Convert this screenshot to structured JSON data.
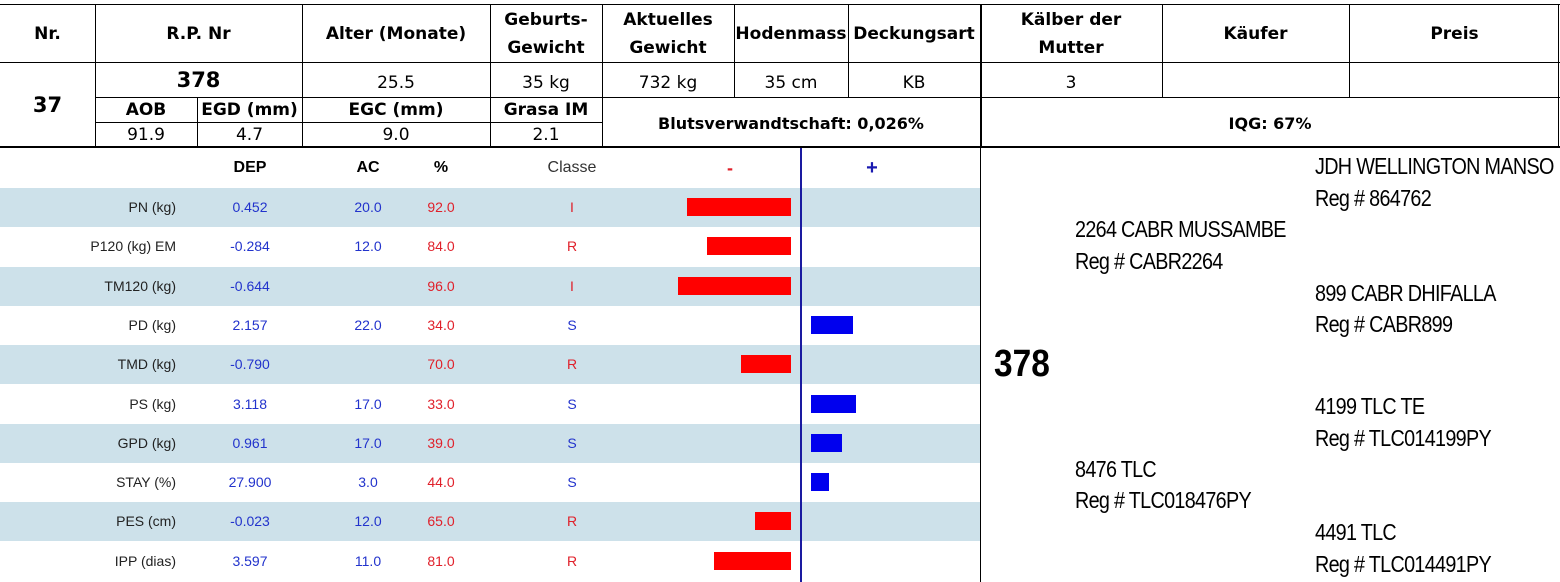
{
  "header": {
    "nr_label": "Nr.",
    "rp_label": "R.P. Nr",
    "alter_label": "Alter (Monate)",
    "geburts_label_1": "Geburts-",
    "geburts_label_2": "Gewicht",
    "aktuelles_label_1": "Aktuelles",
    "aktuelles_label_2": "Gewicht",
    "hodenmass_label": "Hodenmass",
    "deckungsart_label": "Deckungsart",
    "kaelber_label_1": "Kälber der",
    "kaelber_label_2": "Mutter",
    "kaeufer_label": "Käufer",
    "preis_label": "Preis"
  },
  "animal": {
    "nr": "37",
    "rp": "378",
    "alter": "25.5",
    "geburtsgewicht": "35 kg",
    "aktuelles_gewicht": "732 kg",
    "hodenmass": "35 cm",
    "deckungsart": "KB",
    "kaelber": "3",
    "kaeufer": "",
    "preis": ""
  },
  "carcass": {
    "aob_label": "AOB",
    "aob": "91.9",
    "egd_label": "EGD (mm)",
    "egd": "4.7",
    "egc_label": "EGC (mm)",
    "egc": "9.0",
    "grasa_label": "Grasa IM",
    "grasa": "2.1",
    "blutsverwandtschaft": "Blutsverwandtschaft: 0,026%",
    "iqg": "IQG: 67%"
  },
  "epd_table": {
    "columns": {
      "dep": "DEP",
      "ac": "AC",
      "pct": "%",
      "classe": "Classe",
      "minus": "-",
      "plus": "+"
    },
    "rows": [
      {
        "label": "PN (kg)",
        "dep": "0.452",
        "ac": "20.0",
        "pct": "92.0",
        "classe": "I",
        "side": "neg",
        "bar": 0.92
      },
      {
        "label": "P120 (kg) EM",
        "dep": "-0.284",
        "ac": "12.0",
        "pct": "84.0",
        "classe": "R",
        "side": "neg",
        "bar": 0.74
      },
      {
        "label": "TM120 (kg)",
        "dep": "-0.644",
        "ac": "",
        "pct": "96.0",
        "classe": "I",
        "side": "neg",
        "bar": 1.0
      },
      {
        "label": "PD (kg)",
        "dep": "2.157",
        "ac": "22.0",
        "pct": "34.0",
        "classe": "S",
        "side": "pos",
        "bar": 0.37
      },
      {
        "label": "TMD (kg)",
        "dep": "-0.790",
        "ac": "",
        "pct": "70.0",
        "classe": "R",
        "side": "neg",
        "bar": 0.44
      },
      {
        "label": "PS (kg)",
        "dep": "3.118",
        "ac": "17.0",
        "pct": "33.0",
        "classe": "S",
        "side": "pos",
        "bar": 0.4
      },
      {
        "label": "GPD (kg)",
        "dep": "0.961",
        "ac": "17.0",
        "pct": "39.0",
        "classe": "S",
        "side": "pos",
        "bar": 0.27
      },
      {
        "label": "STAY (%)",
        "dep": "27.900",
        "ac": "3.0",
        "pct": "44.0",
        "classe": "S",
        "side": "pos",
        "bar": 0.16
      },
      {
        "label": "PES (cm)",
        "dep": "-0.023",
        "ac": "12.0",
        "pct": "65.0",
        "classe": "R",
        "side": "neg",
        "bar": 0.32
      },
      {
        "label": "IPP (dias)",
        "dep": "3.597",
        "ac": "11.0",
        "pct": "81.0",
        "classe": "R",
        "side": "neg",
        "bar": 0.68
      }
    ]
  },
  "pedigree": {
    "self": "378",
    "sire": {
      "name": "2264 CABR MUSSAMBE",
      "reg": "Reg # CABR2264"
    },
    "sire_sire": {
      "name": "JDH WELLINGTON MANSO",
      "reg": "Reg # 864762"
    },
    "sire_dam": {
      "name": "899 CABR DHIFALLA",
      "reg": "Reg # CABR899"
    },
    "dam": {
      "name": "8476 TLC",
      "reg": "Reg # TLC018476PY"
    },
    "dam_sire": {
      "name": "4199 TLC TE",
      "reg": "Reg # TLC014199PY"
    },
    "dam_dam": {
      "name": "4491 TLC",
      "reg": "Reg # TLC014491PY"
    }
  },
  "colors": {
    "shade_row": "#cde1ea",
    "negative_bar": "#ff0000",
    "positive_bar": "#0000ee",
    "axis": "#1a1aa0"
  }
}
